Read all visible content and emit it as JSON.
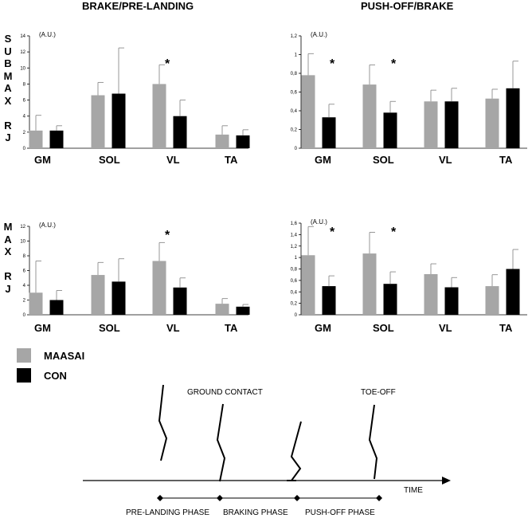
{
  "column_titles": [
    "BRAKE/PRE-LANDING",
    "PUSH-OFF/BRAKE"
  ],
  "row_labels": [
    "S\nU\nB\nM\nA\nX\n\nR\nJ",
    "M\nA\nX\n\nR\nJ"
  ],
  "legend": [
    {
      "name": "MAASAI",
      "color": "#a6a6a6"
    },
    {
      "name": "CON",
      "color": "#000000"
    }
  ],
  "chart_data": [
    {
      "type": "bar",
      "title": "BRAKE/PRE-LANDING",
      "row": "SUBMAX RJ",
      "categories": [
        "GM",
        "SOL",
        "VL",
        "TA"
      ],
      "ylabel": "(A.U.)",
      "ylim": [
        0,
        14
      ],
      "yticks": [
        "0",
        "2",
        "4",
        "6",
        "8",
        "10",
        "12",
        "14"
      ],
      "series": [
        {
          "name": "MAASAI",
          "values": [
            2.2,
            6.6,
            8.0,
            1.7
          ],
          "errors": [
            1.9,
            1.6,
            2.4,
            1.1
          ]
        },
        {
          "name": "CON",
          "values": [
            2.2,
            6.8,
            4.0,
            1.6
          ],
          "errors": [
            0.6,
            5.7,
            2.0,
            0.7
          ]
        }
      ],
      "significance": [
        {
          "category": "VL",
          "label": "*"
        }
      ]
    },
    {
      "type": "bar",
      "title": "PUSH-OFF/BRAKE",
      "row": "SUBMAX RJ",
      "categories": [
        "GM",
        "SOL",
        "VL",
        "TA"
      ],
      "ylabel": "(A.U.)",
      "ylim": [
        0,
        1.2
      ],
      "yticks": [
        "0",
        "0,2",
        "0,4",
        "0,6",
        "0,8",
        "1",
        "1,2"
      ],
      "series": [
        {
          "name": "MAASAI",
          "values": [
            0.78,
            0.68,
            0.5,
            0.53
          ],
          "errors": [
            0.23,
            0.21,
            0.12,
            0.1
          ]
        },
        {
          "name": "CON",
          "values": [
            0.33,
            0.38,
            0.5,
            0.64
          ],
          "errors": [
            0.14,
            0.12,
            0.14,
            0.29
          ]
        }
      ],
      "significance": [
        {
          "category": "GM",
          "label": "*"
        },
        {
          "category": "SOL",
          "label": "*"
        }
      ]
    },
    {
      "type": "bar",
      "title": "BRAKE/PRE-LANDING",
      "row": "MAX RJ",
      "categories": [
        "GM",
        "SOL",
        "VL",
        "TA"
      ],
      "ylabel": "(A.U.)",
      "ylim": [
        0,
        12
      ],
      "yticks": [
        "0",
        "2",
        "4",
        "6",
        "8",
        "10",
        "12"
      ],
      "series": [
        {
          "name": "MAASAI",
          "values": [
            3.0,
            5.4,
            7.3,
            1.5
          ],
          "errors": [
            4.3,
            1.7,
            2.5,
            0.7
          ]
        },
        {
          "name": "CON",
          "values": [
            2.0,
            4.5,
            3.7,
            1.1
          ],
          "errors": [
            1.3,
            3.1,
            1.3,
            0.3
          ]
        }
      ],
      "significance": [
        {
          "category": "VL",
          "label": "*"
        }
      ]
    },
    {
      "type": "bar",
      "title": "PUSH-OFF/BRAKE",
      "row": "MAX RJ",
      "categories": [
        "GM",
        "SOL",
        "VL",
        "TA"
      ],
      "ylabel": "(A.U.)",
      "ylim": [
        0,
        1.6
      ],
      "yticks": [
        "0",
        "0,2",
        "0,4",
        "0,6",
        "0,8",
        "1",
        "1,2",
        "1,4",
        "1,6"
      ],
      "series": [
        {
          "name": "MAASAI",
          "values": [
            1.04,
            1.07,
            0.71,
            0.5
          ],
          "errors": [
            0.5,
            0.37,
            0.18,
            0.2
          ]
        },
        {
          "name": "CON",
          "values": [
            0.5,
            0.54,
            0.48,
            0.8
          ],
          "errors": [
            0.18,
            0.21,
            0.17,
            0.34
          ]
        }
      ],
      "significance": [
        {
          "category": "GM",
          "label": "*"
        },
        {
          "category": "SOL",
          "label": "*"
        }
      ]
    }
  ],
  "diagram": {
    "labels": {
      "ground_contact": "GROUND CONTACT",
      "toe_off": "TOE-OFF",
      "time": "TIME"
    },
    "phases": [
      "PRE-LANDING PHASE",
      "BRAKING PHASE",
      "PUSH-OFF PHASE"
    ]
  }
}
